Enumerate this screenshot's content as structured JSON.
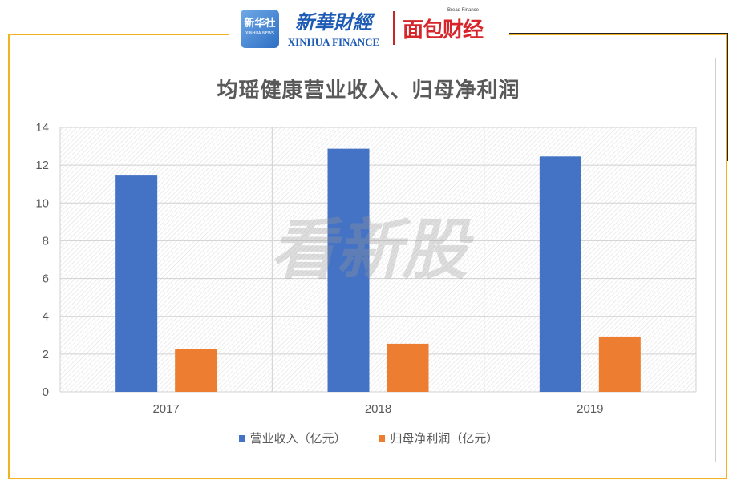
{
  "branding": {
    "badge_line1": "新华社",
    "badge_line2": "XINHUA NEWS",
    "xinhua_finance_cn": "新華財經",
    "xinhua_finance_en": "XINHUA FINANCE",
    "bread_finance_en": "Bread Finance",
    "bread_finance_cn": "面包财经"
  },
  "watermark": "看新股",
  "colors": {
    "frame_gold": "#f0b41e",
    "series_revenue": "#4472c4",
    "series_profit": "#ed7d31",
    "brand_red": "#d6262b",
    "brand_blue": "#1d5bb4"
  },
  "chart_data": {
    "type": "bar",
    "title": "均瑶健康营业收入、归母净利润",
    "categories": [
      "2017",
      "2018",
      "2019"
    ],
    "series": [
      {
        "name": "营业收入（亿元）",
        "values": [
          11.45,
          12.87,
          12.46
        ]
      },
      {
        "name": "归母净利润（亿元）",
        "values": [
          2.25,
          2.55,
          2.93
        ]
      }
    ],
    "ylim": [
      0,
      14
    ],
    "yticks": [
      "0",
      "2",
      "4",
      "6",
      "8",
      "10",
      "12",
      "14"
    ],
    "grid": true,
    "legend_position": "bottom"
  }
}
